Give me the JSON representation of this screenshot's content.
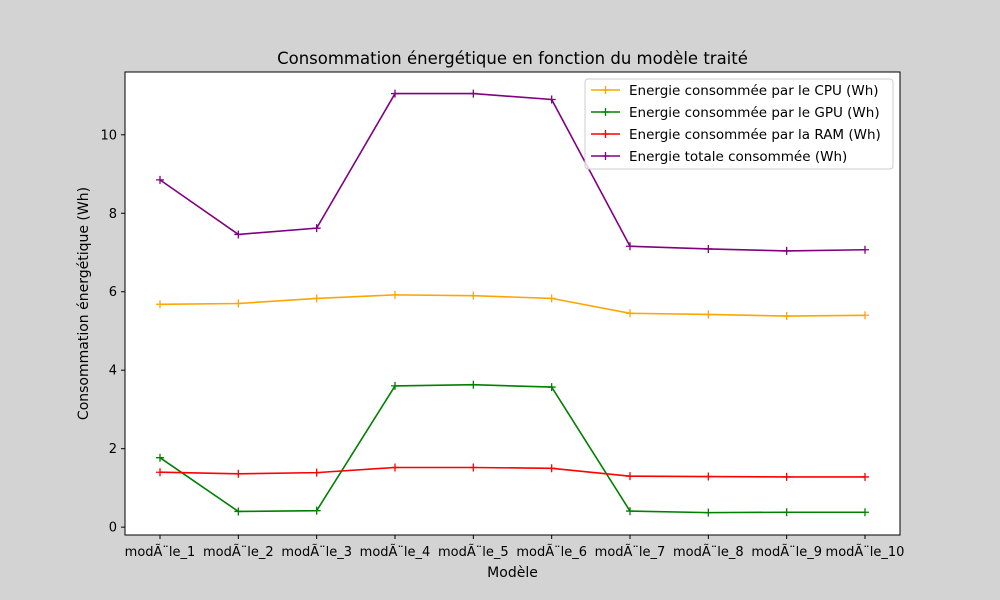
{
  "chart_data": {
    "type": "line",
    "title": "Consommation énergétique en fonction du modèle traité",
    "xlabel": "Modèle",
    "ylabel": "Consommation énergétique (Wh)",
    "categories": [
      "modÃ¨le_1",
      "modÃ¨le_2",
      "modÃ¨le_3",
      "modÃ¨le_4",
      "modÃ¨le_5",
      "modÃ¨le_6",
      "modÃ¨le_7",
      "modÃ¨le_8",
      "modÃ¨le_9",
      "modÃ¨le_10"
    ],
    "ylim": [
      -0.2,
      11.6
    ],
    "yticks": [
      "0",
      "2",
      "4",
      "6",
      "8",
      "10"
    ],
    "grid": false,
    "legend_position": "top-right",
    "series": [
      {
        "name": "Energie consommée par le CPU (Wh)",
        "color": "#ffa500",
        "values": [
          5.68,
          5.7,
          5.83,
          5.92,
          5.9,
          5.83,
          5.45,
          5.42,
          5.38,
          5.4
        ]
      },
      {
        "name": "Energie consommée par le GPU (Wh)",
        "color": "#008000",
        "values": [
          1.77,
          0.4,
          0.42,
          3.6,
          3.63,
          3.57,
          0.41,
          0.37,
          0.38,
          0.38
        ]
      },
      {
        "name": "Energie consommée par la RAM (Wh)",
        "color": "#ff0000",
        "values": [
          1.4,
          1.36,
          1.39,
          1.52,
          1.52,
          1.5,
          1.3,
          1.29,
          1.28,
          1.28
        ]
      },
      {
        "name": "Energie totale consommée (Wh)",
        "color": "#800080",
        "values": [
          8.85,
          7.46,
          7.62,
          11.05,
          11.05,
          10.9,
          7.16,
          7.09,
          7.04,
          7.07
        ]
      }
    ]
  }
}
